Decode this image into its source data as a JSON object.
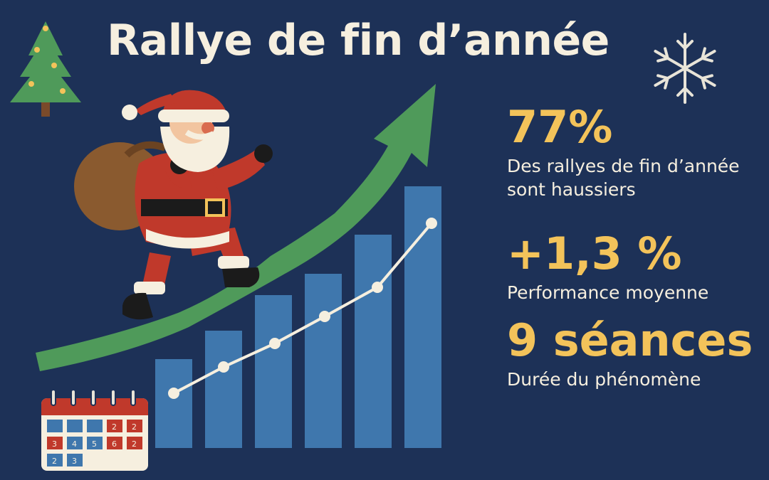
{
  "title": "Rallye de fin d’année",
  "stats": [
    {
      "value": "77%",
      "label": "Des rallyes de fin d’année sont haussiers"
    },
    {
      "value": "+1,3 %",
      "label": "Performance moyenne"
    },
    {
      "value": "9 séances",
      "label": "Durée du phénomène"
    }
  ],
  "calendar": {
    "rows": [
      [
        "",
        "",
        "",
        "2",
        "2"
      ],
      [
        "3",
        "4",
        "5",
        "6",
        "2"
      ],
      [
        "2",
        "3",
        "",
        "",
        ""
      ]
    ]
  },
  "colors": {
    "background": "#1d3157",
    "accent": "#f3c35a",
    "text": "#f6efdf",
    "arrow": "#4f9a5a",
    "bars": "#3f77ad",
    "santa_red": "#c0392b"
  },
  "icons": [
    "christmas-tree-icon",
    "snowflake-icon",
    "calendar-icon",
    "santa-illustration",
    "growth-arrow-icon"
  ]
}
